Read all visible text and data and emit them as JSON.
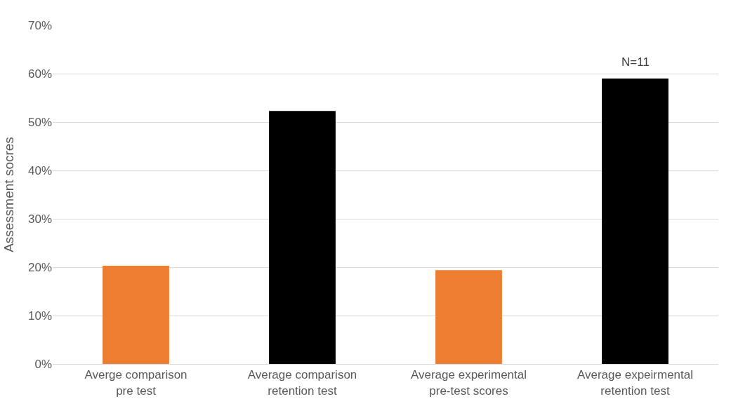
{
  "chart_data": {
    "type": "bar",
    "ylabel": "Assessment socres",
    "categories": [
      "Averge comparison\npre test",
      "Average comparison\nretention test",
      "Average experimental\npre-test scores",
      "Average expeirmental\nretention test"
    ],
    "values": [
      20.3,
      52.3,
      19.4,
      59
    ],
    "colors": [
      "#ed7d31",
      "#000000",
      "#ed7d31",
      "#000000"
    ],
    "ylim": [
      0,
      70
    ],
    "yticks": [
      {
        "value": 0,
        "label": "0%"
      },
      {
        "value": 10,
        "label": "10%"
      },
      {
        "value": 20,
        "label": "20%"
      },
      {
        "value": 30,
        "label": "30%"
      },
      {
        "value": 40,
        "label": "40%"
      },
      {
        "value": 50,
        "label": "50%"
      },
      {
        "value": 60,
        "label": "60%"
      },
      {
        "value": 70,
        "label": "70%"
      }
    ],
    "grid": "y",
    "annotations": [
      {
        "text": "N=11",
        "x": "Average expeirmental\nretention test",
        "y": 59
      }
    ]
  }
}
